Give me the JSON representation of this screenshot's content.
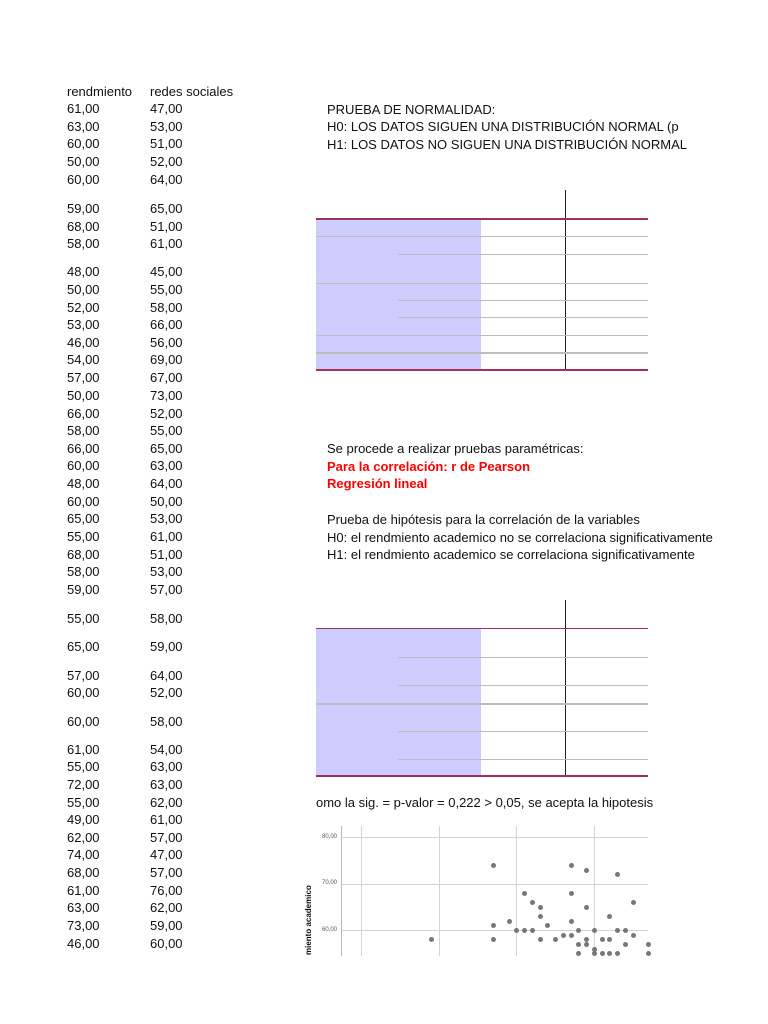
{
  "columns": {
    "rendimiento": "rendmiento",
    "redes": "redes sociales"
  },
  "rows": [
    [
      "61,00",
      "47,00"
    ],
    [
      "63,00",
      "53,00"
    ],
    [
      "60,00",
      "51,00"
    ],
    [
      "50,00",
      "52,00"
    ],
    [
      "60,00",
      "64,00"
    ],
    [
      "59,00",
      "65,00"
    ],
    [
      "68,00",
      "51,00"
    ],
    [
      "58,00",
      "61,00"
    ],
    [
      "48,00",
      "45,00"
    ],
    [
      "50,00",
      "55,00"
    ],
    [
      "52,00",
      "58,00"
    ],
    [
      "53,00",
      "66,00"
    ],
    [
      "46,00",
      "56,00"
    ],
    [
      "54,00",
      "69,00"
    ],
    [
      "57,00",
      "67,00"
    ],
    [
      "50,00",
      "73,00"
    ],
    [
      "66,00",
      "52,00"
    ],
    [
      "58,00",
      "55,00"
    ],
    [
      "66,00",
      "65,00"
    ],
    [
      "60,00",
      "63,00"
    ],
    [
      "48,00",
      "64,00"
    ],
    [
      "60,00",
      "50,00"
    ],
    [
      "65,00",
      "53,00"
    ],
    [
      "55,00",
      "61,00"
    ],
    [
      "68,00",
      "51,00"
    ],
    [
      "58,00",
      "53,00"
    ],
    [
      "59,00",
      "57,00"
    ],
    [
      "55,00",
      "58,00"
    ],
    [
      "65,00",
      "59,00"
    ],
    [
      "57,00",
      "64,00"
    ],
    [
      "60,00",
      "52,00"
    ],
    [
      "60,00",
      "58,00"
    ],
    [
      "61,00",
      "54,00"
    ],
    [
      "55,00",
      "63,00"
    ],
    [
      "72,00",
      "63,00"
    ],
    [
      "55,00",
      "62,00"
    ],
    [
      "49,00",
      "61,00"
    ],
    [
      "62,00",
      "57,00"
    ],
    [
      "74,00",
      "47,00"
    ],
    [
      "68,00",
      "57,00"
    ],
    [
      "61,00",
      "76,00"
    ],
    [
      "63,00",
      "62,00"
    ],
    [
      "73,00",
      "59,00"
    ],
    [
      "46,00",
      "60,00"
    ]
  ],
  "normality": {
    "title": "PRUEBA DE NORMALIDAD:",
    "h0": "H0: LOS DATOS  SIGUEN UNA DISTRIBUCIÓN NORMAL (p",
    "h1": "H1: LOS DATOS NO SIGUEN UNA DISTRIBUCIÓN NORMAL"
  },
  "parametric": {
    "intro": "Se procede a realizar pruebas paramétricas:",
    "pearson": "Para la correlación: r de Pearson",
    "regression": "Regresión lineal"
  },
  "hypothesis": {
    "title": "Prueba de hipótesis para la correlación de la variables",
    "h0": "H0: el rendmiento academico no se correlaciona significativamente",
    "h1": "H1:  el rendmiento academico  se correlaciona significativamente"
  },
  "conclusion": "omo la sig. = p-valor = 0,222 > 0,05, se acepta la hipotesis",
  "colors": {
    "table_header_fill": "#ccccff",
    "table_border": "#a0305f",
    "highlight_text": "#ff0000"
  },
  "chart_data": {
    "type": "scatter",
    "ylabel": "miento academico",
    "yticks": [
      "80,00",
      "70,00",
      "60,00"
    ],
    "ylim": [
      54.6,
      82.4
    ],
    "xlim": [
      24.2,
      67
    ],
    "x_gridlines": [
      30,
      40,
      50,
      60
    ],
    "grid": true,
    "points": [
      [
        39,
        58
      ],
      [
        47,
        74
      ],
      [
        47,
        61
      ],
      [
        47,
        58
      ],
      [
        49,
        62
      ],
      [
        50,
        60
      ],
      [
        51,
        68
      ],
      [
        51,
        60
      ],
      [
        52,
        66
      ],
      [
        52,
        60
      ],
      [
        53,
        65
      ],
      [
        53,
        63
      ],
      [
        53,
        58
      ],
      [
        54,
        61
      ],
      [
        55,
        58
      ],
      [
        56,
        59
      ],
      [
        57,
        74
      ],
      [
        57,
        68
      ],
      [
        57,
        62
      ],
      [
        57,
        59
      ],
      [
        58,
        60
      ],
      [
        58,
        57
      ],
      [
        58,
        55
      ],
      [
        59,
        73
      ],
      [
        59,
        65
      ],
      [
        59,
        58
      ],
      [
        59,
        57
      ],
      [
        60,
        60
      ],
      [
        60,
        56
      ],
      [
        60,
        55
      ],
      [
        61,
        58
      ],
      [
        61,
        55
      ],
      [
        62,
        63
      ],
      [
        62,
        58
      ],
      [
        62,
        55
      ],
      [
        63,
        72
      ],
      [
        63,
        60
      ],
      [
        63,
        55
      ],
      [
        64,
        60
      ],
      [
        64,
        57
      ],
      [
        65,
        66
      ],
      [
        65,
        59
      ],
      [
        67,
        57
      ],
      [
        67,
        55
      ]
    ]
  }
}
